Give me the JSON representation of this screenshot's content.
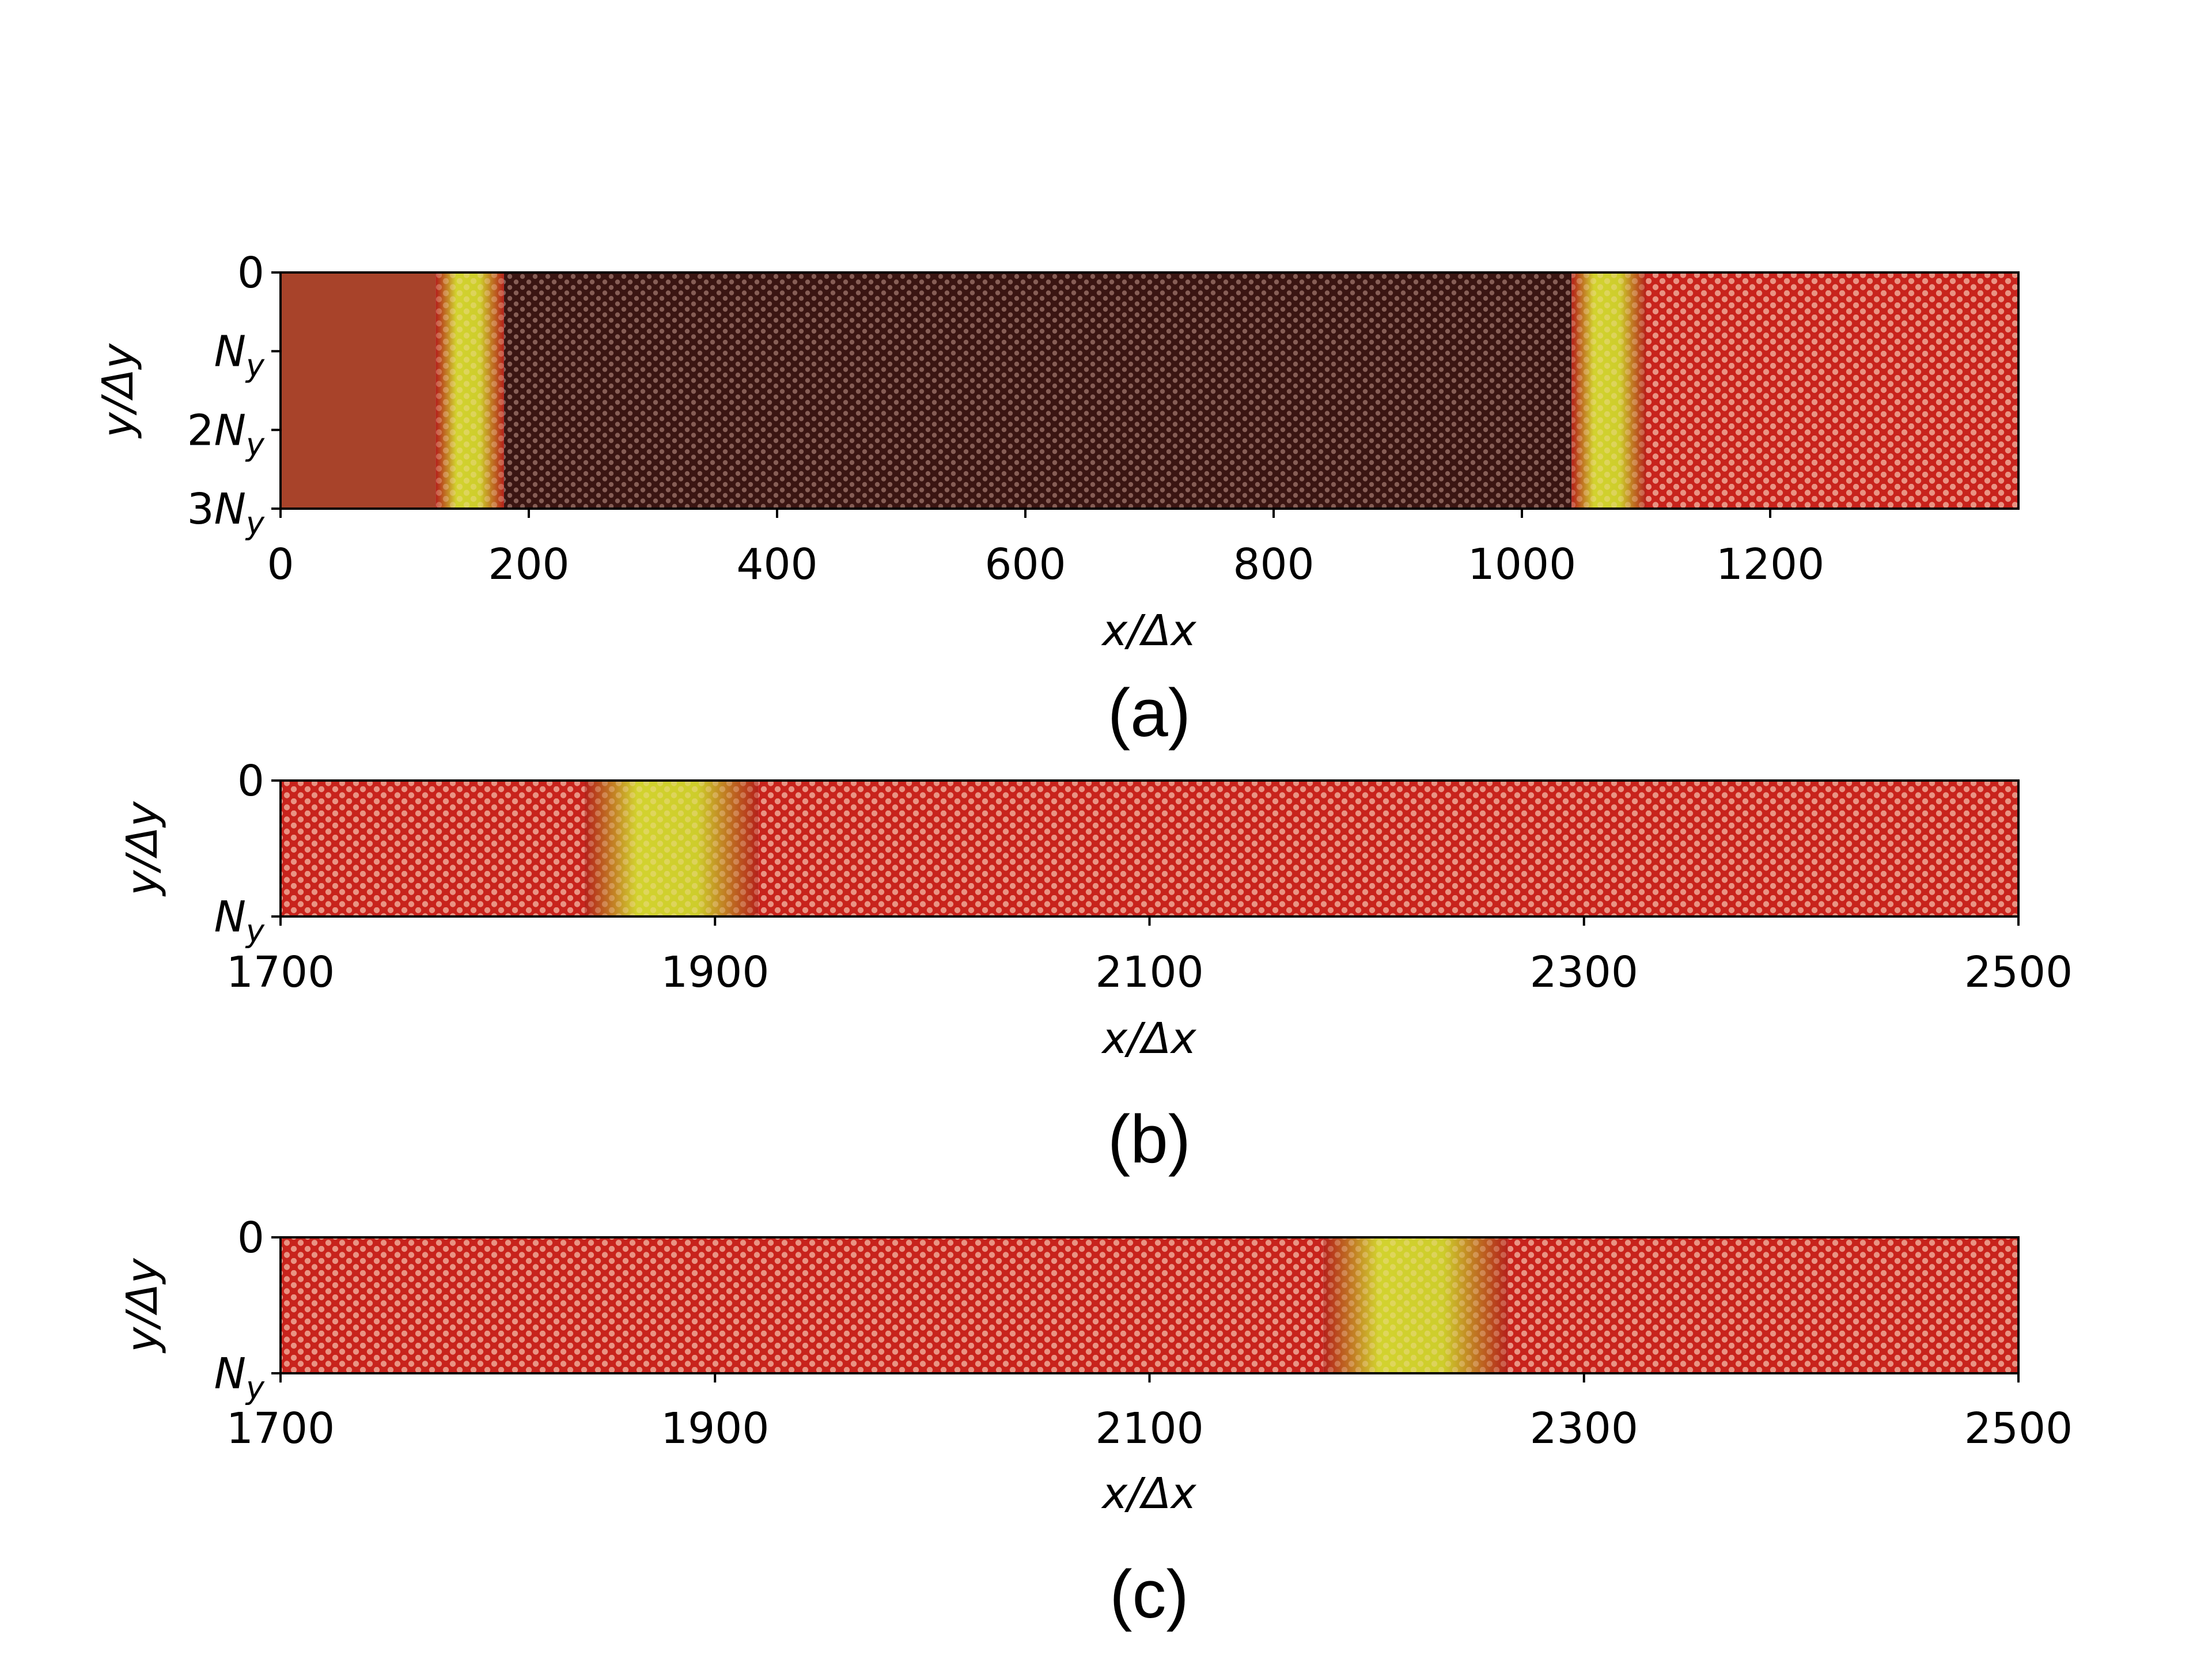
{
  "chart_data": [
    {
      "type": "heatmap",
      "panel_label": "(a)",
      "xlabel": "x/Δx",
      "ylabel": "y/Δy",
      "xlim": [
        0,
        1400
      ],
      "x_ticks": [
        0,
        200,
        400,
        600,
        800,
        1000,
        1200
      ],
      "y_ticks": [
        {
          "value": 0,
          "label": "0"
        },
        {
          "value": 1,
          "label": "N_y"
        },
        {
          "value": 2,
          "label": "2N_y"
        },
        {
          "value": 3,
          "label": "3N_y"
        }
      ],
      "ylim": [
        0,
        3
      ],
      "regions": [
        {
          "from": 0,
          "to": 125,
          "phase": "uniform"
        },
        {
          "from": 125,
          "to": 180,
          "phase": "front"
        },
        {
          "from": 180,
          "to": 1040,
          "phase": "dark-crystal"
        },
        {
          "from": 1040,
          "to": 1100,
          "phase": "front"
        },
        {
          "from": 1100,
          "to": 1400,
          "phase": "crystal"
        }
      ]
    },
    {
      "type": "heatmap",
      "panel_label": "(b)",
      "xlabel": "x/Δx",
      "ylabel": "y/Δy",
      "xlim": [
        1700,
        2500
      ],
      "x_ticks": [
        1700,
        1900,
        2100,
        2300,
        2500
      ],
      "y_ticks": [
        {
          "value": 0,
          "label": "0"
        },
        {
          "value": 1,
          "label": "N_y"
        }
      ],
      "ylim": [
        0,
        1
      ],
      "regions": [
        {
          "from": 1700,
          "to": 1840,
          "phase": "crystal"
        },
        {
          "from": 1840,
          "to": 1920,
          "phase": "front"
        },
        {
          "from": 1920,
          "to": 2500,
          "phase": "crystal"
        }
      ]
    },
    {
      "type": "heatmap",
      "panel_label": "(c)",
      "xlabel": "x/Δx",
      "ylabel": "y/Δy",
      "xlim": [
        1700,
        2500
      ],
      "x_ticks": [
        1700,
        1900,
        2100,
        2300,
        2500
      ],
      "y_ticks": [
        {
          "value": 0,
          "label": "0"
        },
        {
          "value": 1,
          "label": "N_y"
        }
      ],
      "ylim": [
        0,
        1
      ],
      "regions": [
        {
          "from": 1700,
          "to": 2180,
          "phase": "crystal"
        },
        {
          "from": 2180,
          "to": 2265,
          "phase": "front"
        },
        {
          "from": 2265,
          "to": 2500,
          "phase": "crystal"
        }
      ]
    }
  ],
  "colors": {
    "uniform": "#a8432a",
    "dark_crystal": "#3a1512",
    "crystal": "#c8231c",
    "front": "#c9d22a",
    "spot": "#ffd7c4"
  }
}
